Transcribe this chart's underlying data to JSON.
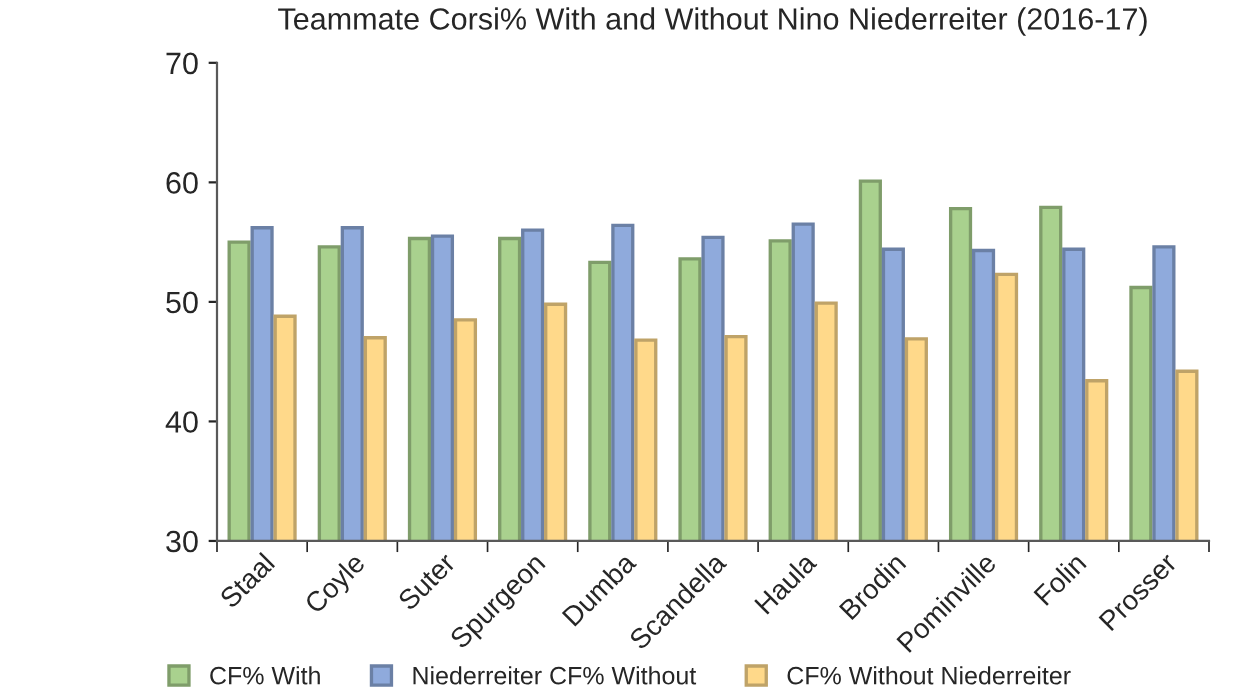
{
  "chart_data": {
    "type": "bar",
    "title": "Teammate Corsi% With and Without Nino Niederreiter (2016-17)",
    "categories": [
      "Staal",
      "Coyle",
      "Suter",
      "Spurgeon",
      "Dumba",
      "Scandella",
      "Haula",
      "Brodin",
      "Pominville",
      "Folin",
      "Prosser"
    ],
    "series": [
      {
        "name": "CF% With",
        "color": "#a9d18e",
        "values": [
          55.0,
          54.6,
          55.3,
          55.3,
          53.3,
          53.6,
          55.1,
          60.1,
          57.8,
          57.9,
          51.2
        ]
      },
      {
        "name": "Niederreiter CF% Without",
        "color": "#8faadc",
        "values": [
          56.2,
          56.2,
          55.5,
          56.0,
          56.4,
          55.4,
          56.5,
          54.4,
          54.3,
          54.4,
          54.6
        ]
      },
      {
        "name": "CF% Without Niederreiter",
        "color": "#ffd98a",
        "values": [
          48.8,
          47.0,
          48.5,
          49.8,
          46.8,
          47.1,
          49.9,
          46.9,
          52.3,
          43.4,
          44.2
        ]
      }
    ],
    "ylim": [
      30,
      70
    ],
    "yticks": [
      30,
      40,
      50,
      60,
      70
    ],
    "grid": false,
    "legend": "bottom"
  }
}
